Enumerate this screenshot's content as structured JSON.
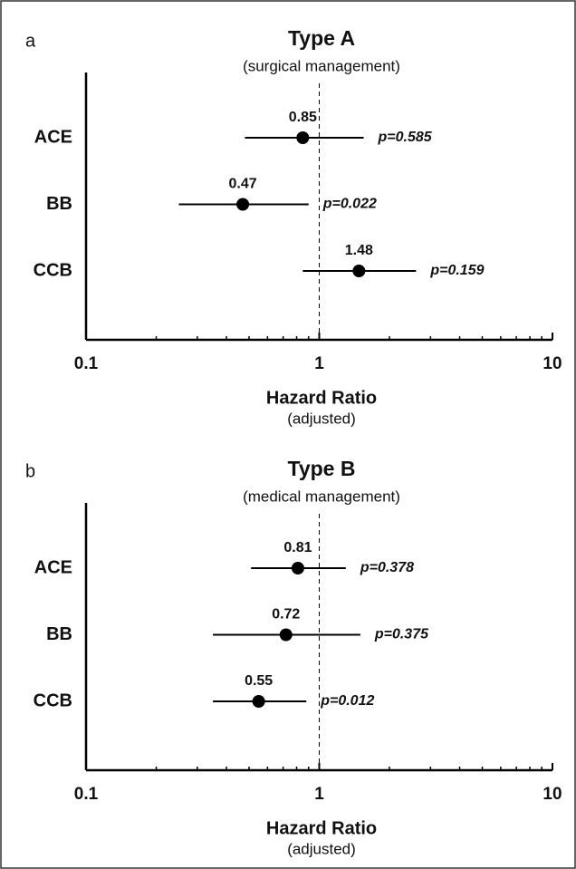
{
  "chart_data": [
    {
      "type": "forest",
      "panel_label": "a",
      "title": "Type A",
      "subtitle": "(surgical management)",
      "categories": [
        "ACE",
        "BB",
        "CCB"
      ],
      "values": [
        0.85,
        0.47,
        1.48
      ],
      "lower": [
        0.48,
        0.25,
        0.85
      ],
      "upper": [
        1.55,
        0.9,
        2.6
      ],
      "p_labels": [
        "p=0.585",
        "p=0.022",
        "p=0.159"
      ],
      "xscale": "log",
      "xlim": [
        0.1,
        10
      ],
      "xticks": [
        0.1,
        1,
        10
      ],
      "xticks_minor": [
        0.2,
        0.3,
        0.4,
        0.5,
        0.6,
        0.7,
        0.8,
        0.9,
        2,
        3,
        4,
        5,
        6,
        7,
        8,
        9
      ],
      "reference_line": 1,
      "xlabel": "Hazard Ratio",
      "xlabel_note": "(adjusted)",
      "color": "#000000"
    },
    {
      "type": "forest",
      "panel_label": "b",
      "title": "Type B",
      "subtitle": "(medical management)",
      "categories": [
        "ACE",
        "BB",
        "CCB"
      ],
      "values": [
        0.81,
        0.72,
        0.55
      ],
      "lower": [
        0.51,
        0.35,
        0.35
      ],
      "upper": [
        1.3,
        1.5,
        0.88
      ],
      "p_labels": [
        "p=0.378",
        "p=0.375",
        "p=0.012"
      ],
      "xscale": "log",
      "xlim": [
        0.1,
        10
      ],
      "xticks": [
        0.1,
        1,
        10
      ],
      "xticks_minor": [
        0.2,
        0.3,
        0.4,
        0.5,
        0.6,
        0.7,
        0.8,
        0.9,
        2,
        3,
        4,
        5,
        6,
        7,
        8,
        9
      ],
      "reference_line": 1,
      "xlabel": "Hazard Ratio",
      "xlabel_note": "(adjusted)",
      "color": "#000000"
    }
  ]
}
